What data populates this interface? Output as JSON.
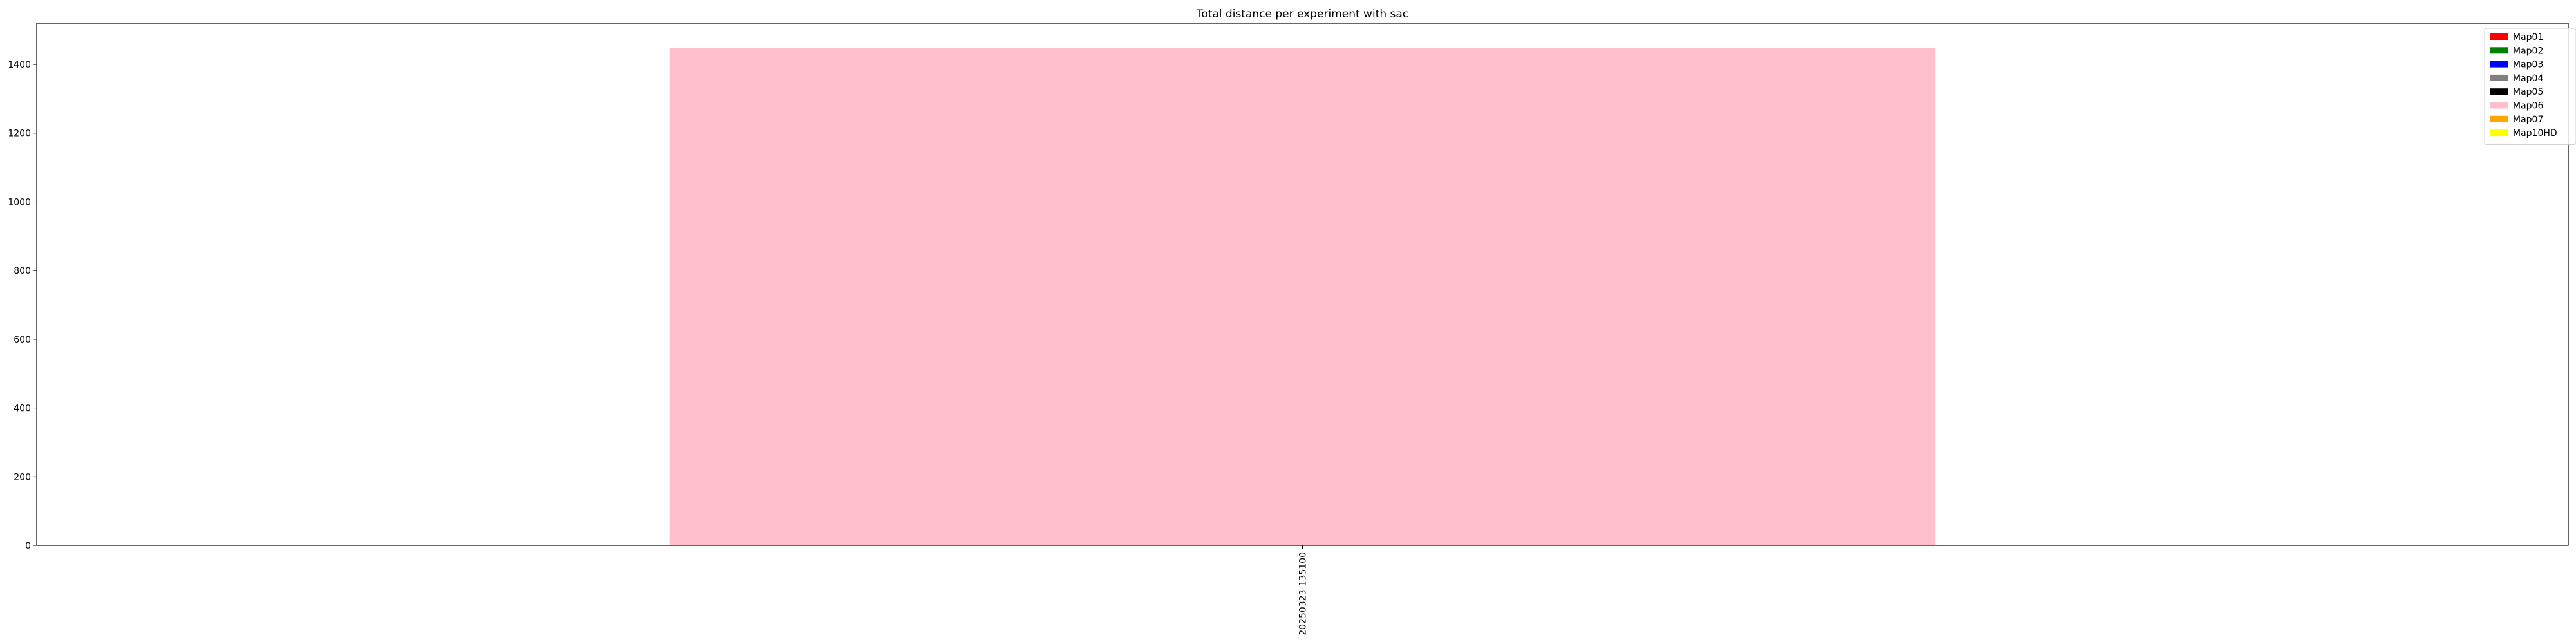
{
  "chart_data": {
    "type": "bar",
    "title": "Total distance per experiment with sac",
    "xlabel": "",
    "ylabel": "",
    "categories": [
      "20250323-135100"
    ],
    "series": [
      {
        "name": "Map01",
        "color": "#ff0000",
        "values": [
          0
        ]
      },
      {
        "name": "Map02",
        "color": "#008000",
        "values": [
          0
        ]
      },
      {
        "name": "Map03",
        "color": "#0000ff",
        "values": [
          0
        ]
      },
      {
        "name": "Map04",
        "color": "#808080",
        "values": [
          0
        ]
      },
      {
        "name": "Map05",
        "color": "#000000",
        "values": [
          0
        ]
      },
      {
        "name": "Map06",
        "color": "#ffc0cb",
        "values": [
          1448
        ]
      },
      {
        "name": "Map07",
        "color": "#ffa500",
        "values": [
          0
        ]
      },
      {
        "name": "Map10HD",
        "color": "#ffff00",
        "values": [
          0
        ]
      }
    ],
    "ylim": [
      0,
      1520
    ],
    "yticks": [
      0,
      200,
      400,
      600,
      800,
      1000,
      1200,
      1400
    ],
    "grid": false,
    "legend_placement": "top-right",
    "stacked": true
  }
}
